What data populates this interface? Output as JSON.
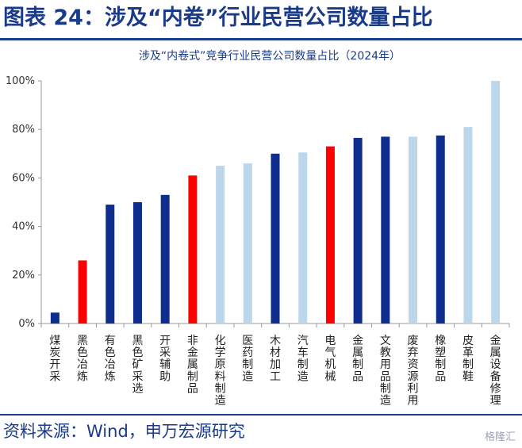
{
  "header": {
    "title": "图表 24：涉及“内卷”行业民营公司数量占比"
  },
  "footer": {
    "source": "资料来源：Wind，申万宏源研究"
  },
  "watermark": "格隆汇",
  "colors": {
    "dark_blue": "#0e2d8c",
    "red": "#ff0000",
    "light_blue": "#bcd6ec",
    "axis": "#999999"
  },
  "chart_data": {
    "type": "bar",
    "title": "涉及“内卷式”竞争行业民营公司数量占比（2024年）",
    "xlabel": "",
    "ylabel": "",
    "ylim": [
      0,
      100
    ],
    "yticks": [
      "0%",
      "20%",
      "40%",
      "60%",
      "80%",
      "100%"
    ],
    "grid": false,
    "categories": [
      "煤炭开采",
      "黑色冶炼",
      "有色冶炼",
      "黑色矿采选",
      "开采辅助",
      "非金属制品",
      "化学原料制造",
      "医药制造",
      "木材加工",
      "汽车制造",
      "电气机械",
      "金属制品",
      "文教用品制造",
      "废弃资源利用",
      "橡塑制品",
      "皮革制鞋",
      "金属设备修理"
    ],
    "values": [
      4.5,
      26,
      49,
      50,
      53,
      61,
      65,
      66,
      70,
      70.5,
      73,
      76.5,
      77,
      77,
      77.5,
      81,
      100
    ],
    "bar_colors": [
      "dark_blue",
      "red",
      "dark_blue",
      "dark_blue",
      "dark_blue",
      "red",
      "light_blue",
      "light_blue",
      "dark_blue",
      "light_blue",
      "red",
      "dark_blue",
      "dark_blue",
      "light_blue",
      "dark_blue",
      "light_blue",
      "light_blue"
    ]
  }
}
